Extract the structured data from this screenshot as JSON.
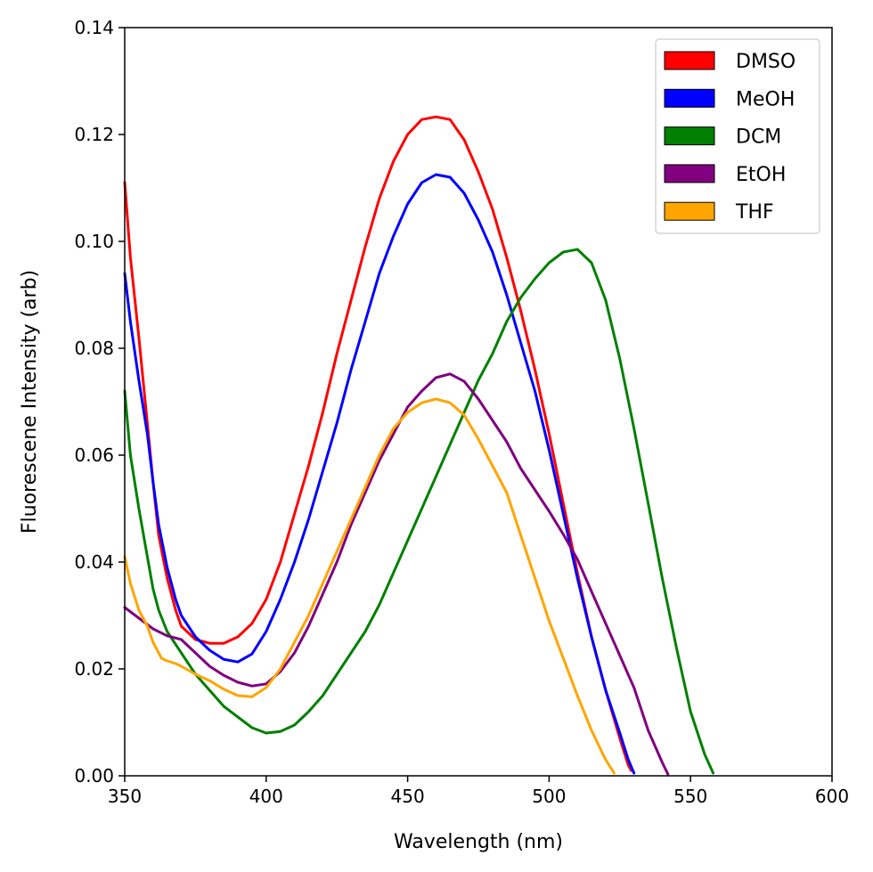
{
  "chart_data": {
    "type": "line",
    "title": "",
    "xlabel": "Wavelength (nm)",
    "ylabel": "Fluorescene Intensity (arb)",
    "xlim": [
      350,
      600
    ],
    "ylim": [
      0,
      0.14
    ],
    "xticks": [
      350,
      400,
      450,
      500,
      550,
      600
    ],
    "xtick_labels": [
      "350",
      "400",
      "450",
      "500",
      "550",
      "600"
    ],
    "yticks": [
      0,
      0.02,
      0.04,
      0.06,
      0.08,
      0.1,
      0.12,
      0.14
    ],
    "ytick_labels": [
      "0.00",
      "0.02",
      "0.04",
      "0.06",
      "0.08",
      "0.10",
      "0.12",
      "0.14"
    ],
    "grid": false,
    "legend_position": "top-right",
    "series": [
      {
        "name": "DMSO",
        "color": "#ff0000",
        "x": [
          350,
          352,
          355,
          358,
          360,
          362,
          365,
          368,
          370,
          375,
          380,
          385,
          390,
          395,
          400,
          405,
          410,
          415,
          420,
          425,
          430,
          435,
          440,
          445,
          450,
          455,
          460,
          465,
          470,
          475,
          480,
          485,
          490,
          495,
          500,
          505,
          510,
          515,
          520,
          525,
          528,
          529
        ],
        "y": [
          0.111,
          0.097,
          0.082,
          0.066,
          0.055,
          0.045,
          0.037,
          0.031,
          0.028,
          0.0255,
          0.0248,
          0.0248,
          0.026,
          0.0285,
          0.033,
          0.04,
          0.049,
          0.058,
          0.068,
          0.079,
          0.089,
          0.099,
          0.108,
          0.115,
          0.12,
          0.1228,
          0.1233,
          0.1228,
          0.119,
          0.113,
          0.106,
          0.097,
          0.087,
          0.076,
          0.064,
          0.051,
          0.038,
          0.026,
          0.016,
          0.007,
          0.002,
          0.001
        ]
      },
      {
        "name": "MeOH",
        "color": "#0000ff",
        "x": [
          350,
          352,
          355,
          358,
          360,
          362,
          365,
          368,
          370,
          375,
          380,
          385,
          390,
          395,
          400,
          405,
          410,
          415,
          420,
          425,
          430,
          435,
          440,
          445,
          450,
          455,
          460,
          465,
          470,
          475,
          480,
          485,
          490,
          495,
          500,
          505,
          510,
          515,
          520,
          525,
          528,
          530
        ],
        "y": [
          0.094,
          0.085,
          0.074,
          0.064,
          0.055,
          0.047,
          0.039,
          0.033,
          0.03,
          0.026,
          0.0235,
          0.0218,
          0.0213,
          0.0228,
          0.027,
          0.033,
          0.04,
          0.048,
          0.057,
          0.066,
          0.076,
          0.085,
          0.094,
          0.101,
          0.107,
          0.111,
          0.1125,
          0.112,
          0.109,
          0.104,
          0.098,
          0.09,
          0.081,
          0.072,
          0.061,
          0.049,
          0.037,
          0.026,
          0.016,
          0.008,
          0.003,
          0.0005
        ]
      },
      {
        "name": "DCM",
        "color": "#008000",
        "x": [
          350,
          352,
          355,
          358,
          360,
          362,
          365,
          370,
          375,
          380,
          385,
          390,
          395,
          400,
          405,
          410,
          415,
          420,
          425,
          430,
          435,
          440,
          445,
          450,
          455,
          460,
          465,
          470,
          475,
          480,
          485,
          490,
          495,
          500,
          505,
          510,
          515,
          520,
          525,
          530,
          535,
          540,
          545,
          550,
          555,
          558
        ],
        "y": [
          0.072,
          0.06,
          0.05,
          0.041,
          0.035,
          0.031,
          0.027,
          0.023,
          0.019,
          0.016,
          0.013,
          0.011,
          0.009,
          0.008,
          0.0083,
          0.0095,
          0.012,
          0.015,
          0.019,
          0.023,
          0.027,
          0.032,
          0.038,
          0.044,
          0.05,
          0.056,
          0.062,
          0.068,
          0.074,
          0.079,
          0.085,
          0.0895,
          0.093,
          0.096,
          0.098,
          0.0985,
          0.096,
          0.089,
          0.078,
          0.065,
          0.051,
          0.037,
          0.024,
          0.012,
          0.004,
          0.0005
        ]
      },
      {
        "name": "EtOH",
        "color": "#800080",
        "x": [
          350,
          355,
          360,
          365,
          370,
          375,
          380,
          385,
          390,
          395,
          400,
          405,
          410,
          415,
          420,
          425,
          430,
          435,
          440,
          445,
          450,
          455,
          460,
          465,
          470,
          475,
          480,
          485,
          490,
          495,
          500,
          505,
          510,
          515,
          520,
          525,
          530,
          535,
          540,
          542
        ],
        "y": [
          0.0315,
          0.0295,
          0.0275,
          0.0262,
          0.0255,
          0.023,
          0.0205,
          0.0188,
          0.0175,
          0.0168,
          0.0172,
          0.0195,
          0.023,
          0.028,
          0.034,
          0.04,
          0.047,
          0.053,
          0.059,
          0.064,
          0.069,
          0.072,
          0.0745,
          0.0752,
          0.0738,
          0.0705,
          0.0665,
          0.0625,
          0.0575,
          0.0535,
          0.0495,
          0.0452,
          0.0405,
          0.0345,
          0.0285,
          0.0225,
          0.0165,
          0.0085,
          0.0025,
          0.0003
        ]
      },
      {
        "name": "THF",
        "color": "#ffa500",
        "x": [
          350,
          352,
          355,
          358,
          360,
          363,
          365,
          368,
          370,
          375,
          380,
          385,
          390,
          395,
          400,
          405,
          410,
          415,
          420,
          425,
          430,
          435,
          440,
          445,
          450,
          455,
          460,
          465,
          470,
          475,
          480,
          485,
          490,
          495,
          500,
          505,
          510,
          515,
          520,
          523
        ],
        "y": [
          0.041,
          0.036,
          0.031,
          0.028,
          0.025,
          0.022,
          0.0215,
          0.021,
          0.0205,
          0.019,
          0.0178,
          0.0162,
          0.015,
          0.0148,
          0.0165,
          0.02,
          0.025,
          0.03,
          0.036,
          0.042,
          0.048,
          0.054,
          0.06,
          0.065,
          0.068,
          0.0698,
          0.0705,
          0.0698,
          0.0675,
          0.063,
          0.058,
          0.053,
          0.045,
          0.037,
          0.029,
          0.022,
          0.015,
          0.0085,
          0.003,
          0.0005
        ]
      }
    ]
  }
}
